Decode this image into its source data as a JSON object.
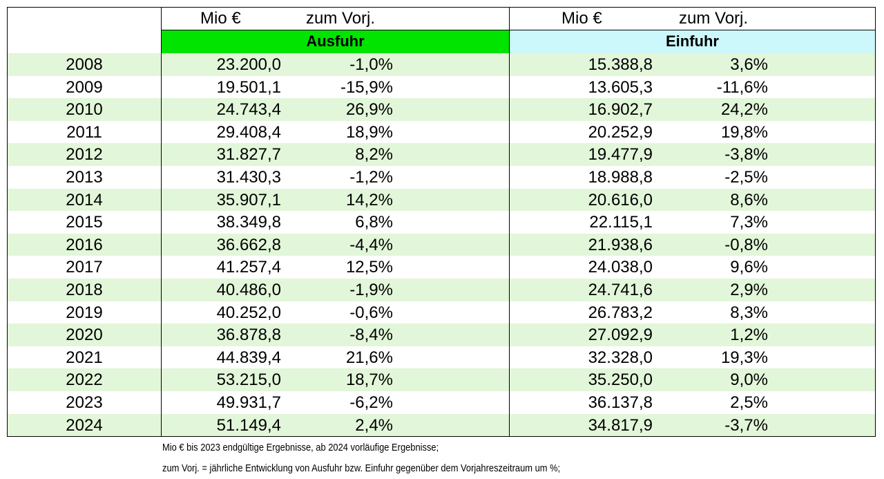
{
  "header": {
    "export_unit": "Mio €",
    "export_change": "zum Vorj.",
    "import_unit": "Mio €",
    "import_change": "zum Vorj.",
    "export_title": "Ausfuhr",
    "import_title": "Einfuhr"
  },
  "colors": {
    "export_header": "#00e400",
    "import_header": "#ccf7fb",
    "row_shade": "#e2f6d9"
  },
  "rows": [
    {
      "year": "2008",
      "export": "23.200,0",
      "export_change": "-1,0%",
      "import": "15.388,8",
      "import_change": "3,6%"
    },
    {
      "year": "2009",
      "export": "19.501,1",
      "export_change": "-15,9%",
      "import": "13.605,3",
      "import_change": "-11,6%"
    },
    {
      "year": "2010",
      "export": "24.743,4",
      "export_change": "26,9%",
      "import": "16.902,7",
      "import_change": "24,2%"
    },
    {
      "year": "2011",
      "export": "29.408,4",
      "export_change": "18,9%",
      "import": "20.252,9",
      "import_change": "19,8%"
    },
    {
      "year": "2012",
      "export": "31.827,7",
      "export_change": "8,2%",
      "import": "19.477,9",
      "import_change": "-3,8%"
    },
    {
      "year": "2013",
      "export": "31.430,3",
      "export_change": "-1,2%",
      "import": "18.988,8",
      "import_change": "-2,5%"
    },
    {
      "year": "2014",
      "export": "35.907,1",
      "export_change": "14,2%",
      "import": "20.616,0",
      "import_change": "8,6%"
    },
    {
      "year": "2015",
      "export": "38.349,8",
      "export_change": "6,8%",
      "import": "22.115,1",
      "import_change": "7,3%"
    },
    {
      "year": "2016",
      "export": "36.662,8",
      "export_change": "-4,4%",
      "import": "21.938,6",
      "import_change": "-0,8%"
    },
    {
      "year": "2017",
      "export": "41.257,4",
      "export_change": "12,5%",
      "import": "24.038,0",
      "import_change": "9,6%"
    },
    {
      "year": "2018",
      "export": "40.486,0",
      "export_change": "-1,9%",
      "import": "24.741,6",
      "import_change": "2,9%"
    },
    {
      "year": "2019",
      "export": "40.252,0",
      "export_change": "-0,6%",
      "import": "26.783,2",
      "import_change": "8,3%"
    },
    {
      "year": "2020",
      "export": "36.878,8",
      "export_change": "-8,4%",
      "import": "27.092,9",
      "import_change": "1,2%"
    },
    {
      "year": "2021",
      "export": "44.839,4",
      "export_change": "21,6%",
      "import": "32.328,0",
      "import_change": "19,3%"
    },
    {
      "year": "2022",
      "export": "53.215,0",
      "export_change": "18,7%",
      "import": "35.250,0",
      "import_change": "9,0%"
    },
    {
      "year": "2023",
      "export": "49.931,7",
      "export_change": "-6,2%",
      "import": "36.137,8",
      "import_change": "2,5%"
    },
    {
      "year": "2024",
      "export": "51.149,4",
      "export_change": "2,4%",
      "import": "34.817,9",
      "import_change": "-3,7%"
    }
  ],
  "footnotes": {
    "line1": "Mio € bis 2023 endgültige Ergebnisse, ab 2024 vorläufige Ergebnisse;",
    "line2": "zum Vorj. = jährliche Entwicklung von Ausfuhr bzw. Einfuhr gegenüber dem Vorjahreszeitraum um %;"
  }
}
